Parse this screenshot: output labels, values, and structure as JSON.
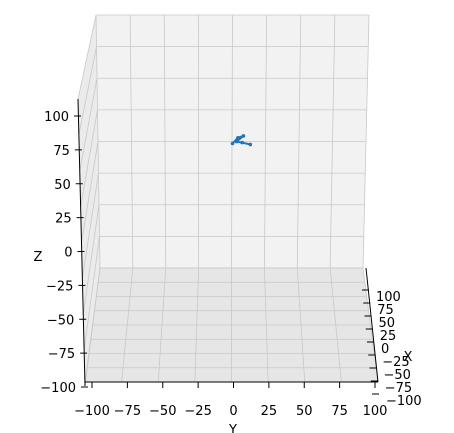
{
  "chart_data": {
    "type": "line",
    "projection": "3d",
    "title": "",
    "xlabel": "X",
    "ylabel": "Y",
    "zlabel": "Z",
    "xlim": [
      -100,
      100
    ],
    "ylim": [
      -100,
      100
    ],
    "zlim": [
      -100,
      100
    ],
    "x_ticks": [
      "−100",
      "−75",
      "−50",
      "−25",
      "0",
      "25",
      "50",
      "75",
      "100"
    ],
    "y_ticks": [
      "−100",
      "−75",
      "−50",
      "−25",
      "0",
      "25",
      "50",
      "75",
      "100"
    ],
    "z_ticks": [
      "−100",
      "−75",
      "−50",
      "−25",
      "0",
      "25",
      "50",
      "75",
      "100"
    ],
    "grid": true,
    "legend": "none",
    "series": [
      {
        "color": "#1f77b4",
        "points": [
          {
            "x": 0,
            "y": 0,
            "z": 50
          },
          {
            "x": 4,
            "y": 0,
            "z": 56
          },
          {
            "x": 8,
            "y": 0,
            "z": 58
          },
          {
            "x": 3,
            "y": 0,
            "z": 52
          },
          {
            "x": 13,
            "y": 0,
            "z": 49
          },
          {
            "x": 7,
            "y": 0,
            "z": 51
          }
        ]
      }
    ]
  }
}
